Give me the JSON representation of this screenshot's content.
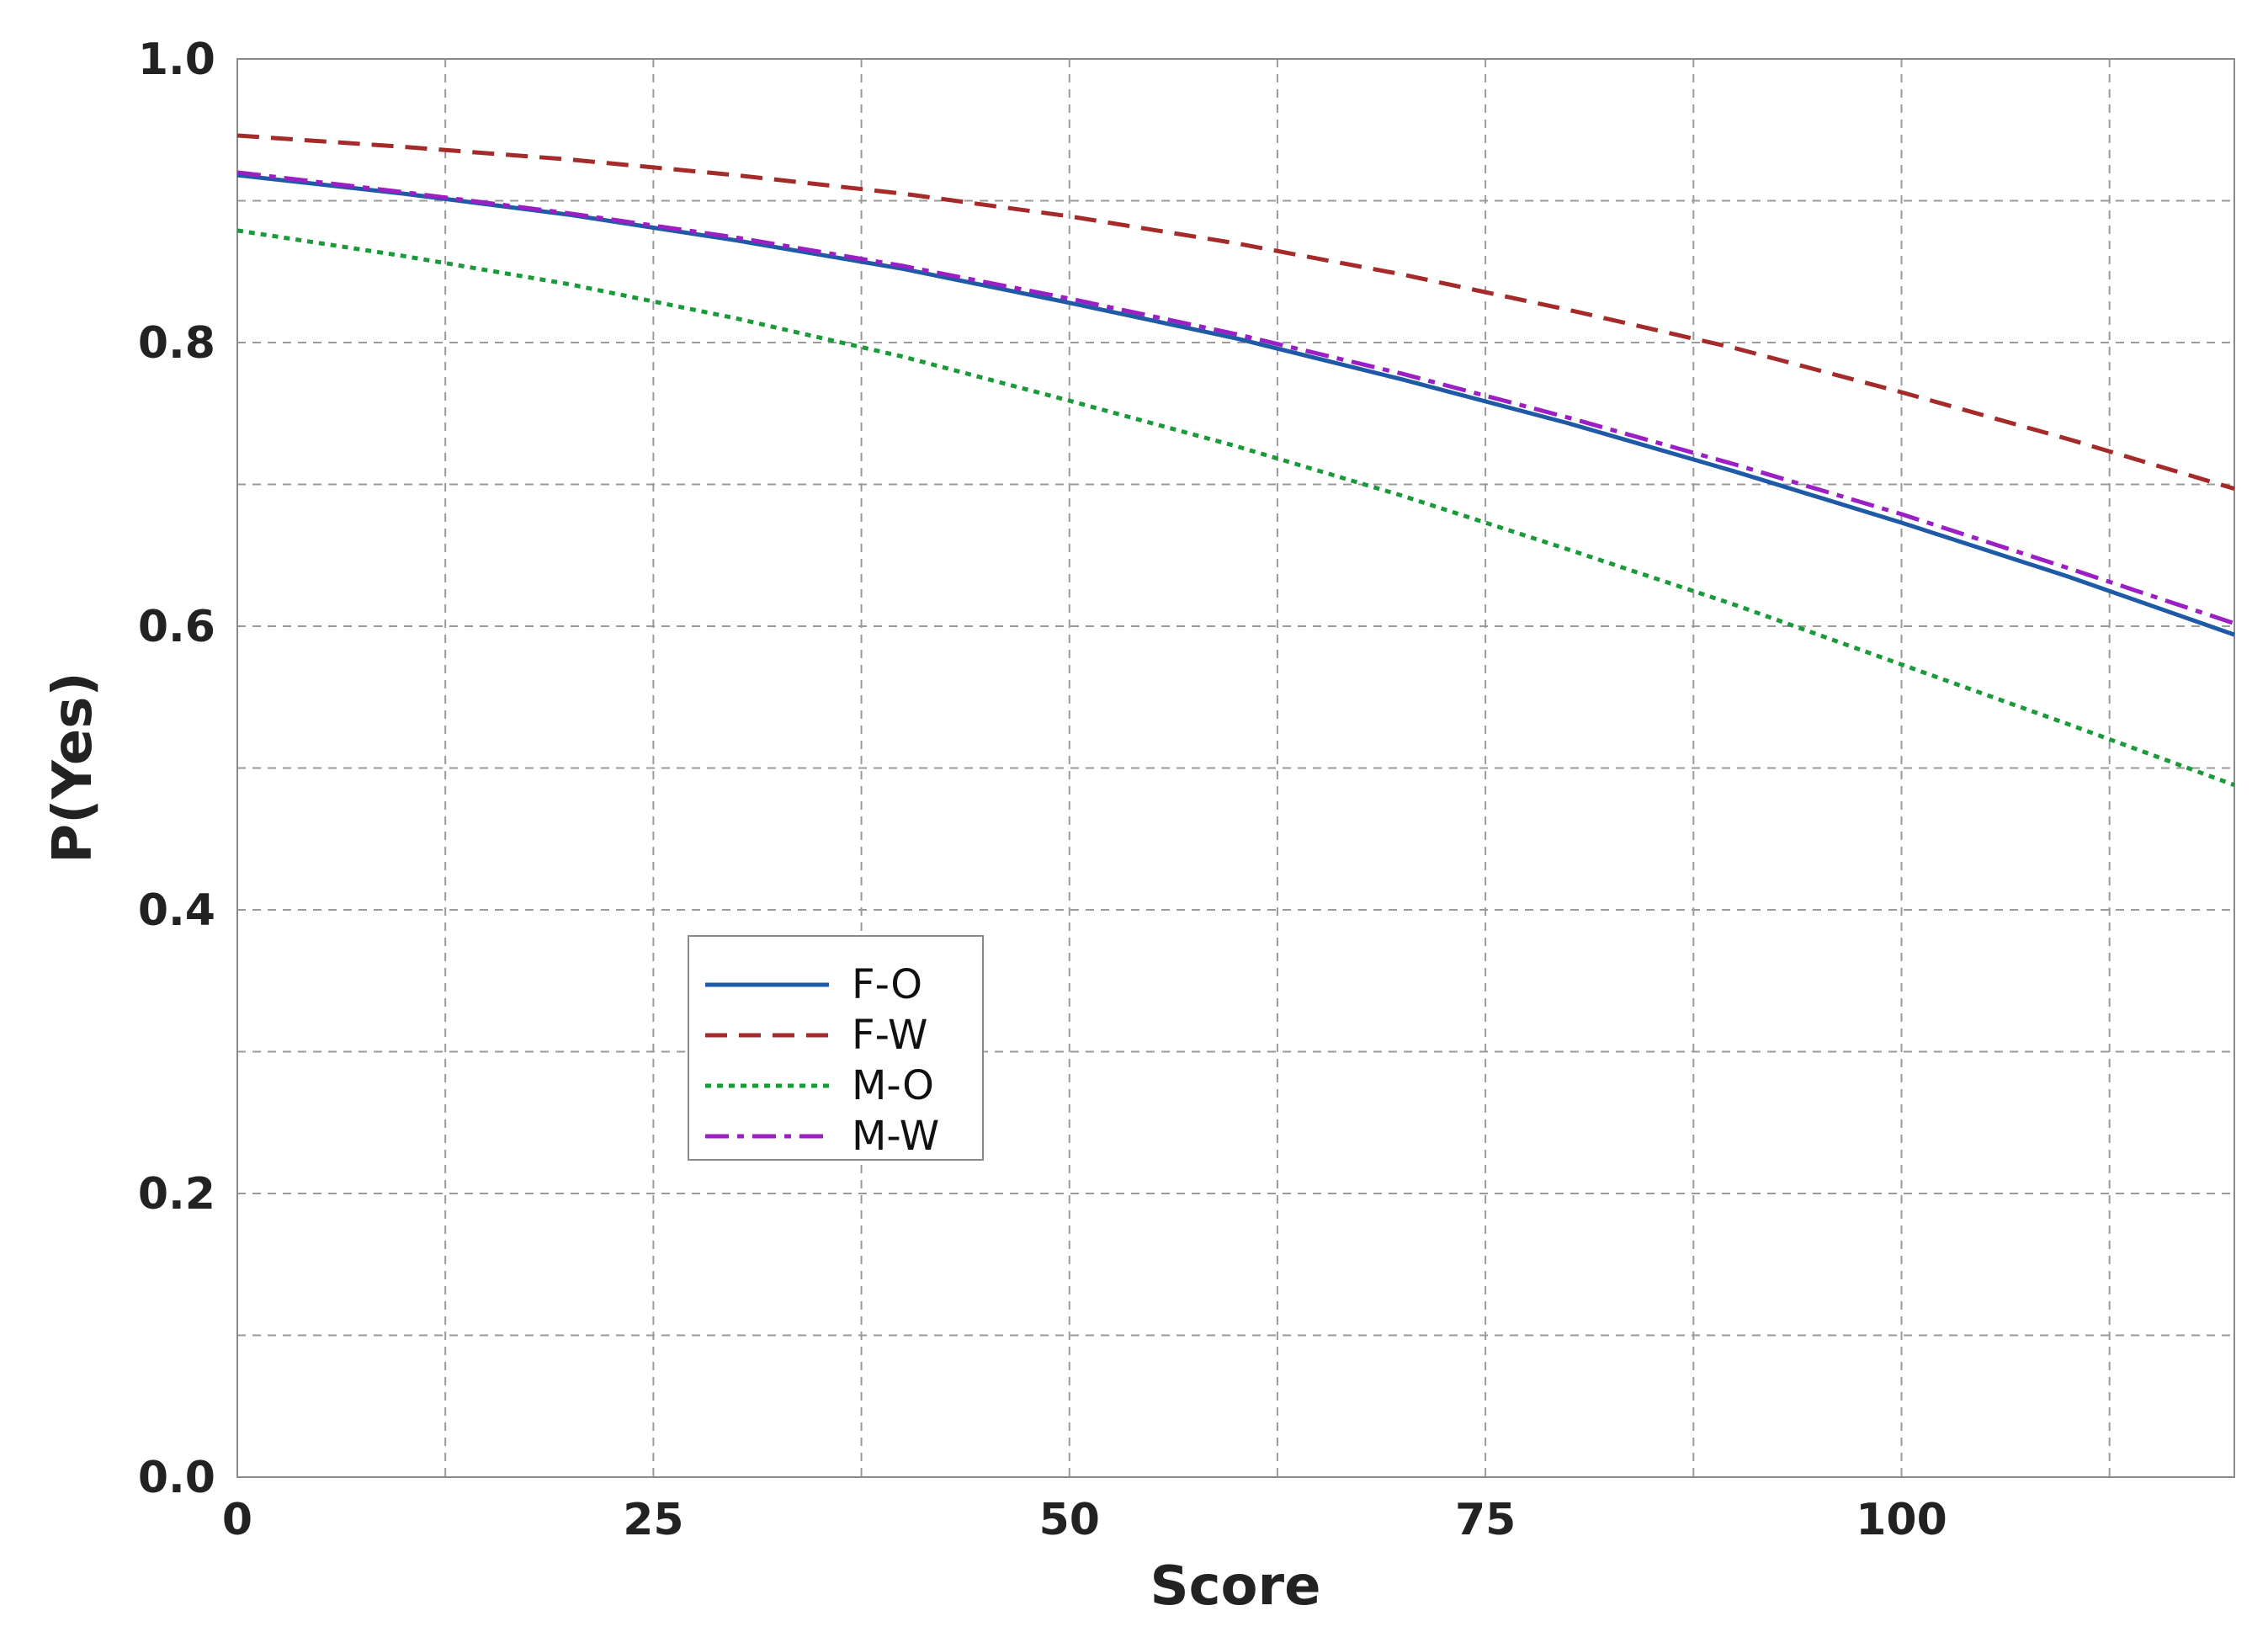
{
  "chart_data": {
    "type": "line",
    "xlabel": "Score",
    "ylabel": "P(Yes)",
    "xlim": [
      0,
      120
    ],
    "ylim": [
      0,
      1.0
    ],
    "x_ticks": [
      0,
      25,
      50,
      75,
      100
    ],
    "x_tick_labels": [
      "0",
      "25",
      "50",
      "75",
      "100"
    ],
    "y_ticks": [
      0,
      0.2,
      0.4,
      0.6,
      0.8,
      1.0
    ],
    "y_tick_labels": [
      "0.0",
      "0.2",
      "0.4",
      "0.6",
      "0.8",
      "1.0"
    ],
    "grid": true,
    "x_grid_minor": [
      12.5,
      37.5,
      62.5,
      87.5,
      112.5
    ],
    "y_grid_minor": [
      0.1,
      0.3,
      0.5,
      0.7,
      0.9
    ],
    "legend_position": "center-left",
    "x": [
      0,
      10,
      20,
      30,
      40,
      50,
      60,
      70,
      80,
      90,
      100,
      110,
      120
    ],
    "series": [
      {
        "name": "F-O",
        "color": "#1f5aa6",
        "dash": "solid",
        "values": [
          0.918,
          0.905,
          0.89,
          0.872,
          0.852,
          0.828,
          0.803,
          0.774,
          0.743,
          0.709,
          0.673,
          0.635,
          0.594
        ]
      },
      {
        "name": "F-W",
        "color": "#a52a2a",
        "dash": "dashed",
        "values": [
          0.946,
          0.938,
          0.929,
          0.918,
          0.905,
          0.889,
          0.87,
          0.848,
          0.823,
          0.796,
          0.765,
          0.732,
          0.697
        ]
      },
      {
        "name": "M-O",
        "color": "#1a9a3a",
        "dash": "dotted",
        "values": [
          0.879,
          0.861,
          0.841,
          0.817,
          0.79,
          0.759,
          0.727,
          0.692,
          0.654,
          0.615,
          0.573,
          0.531,
          0.488
        ]
      },
      {
        "name": "M-W",
        "color": "#9b1fc4",
        "dash": "dashdot",
        "values": [
          0.92,
          0.906,
          0.891,
          0.874,
          0.854,
          0.831,
          0.806,
          0.778,
          0.747,
          0.714,
          0.679,
          0.641,
          0.602
        ]
      }
    ]
  }
}
